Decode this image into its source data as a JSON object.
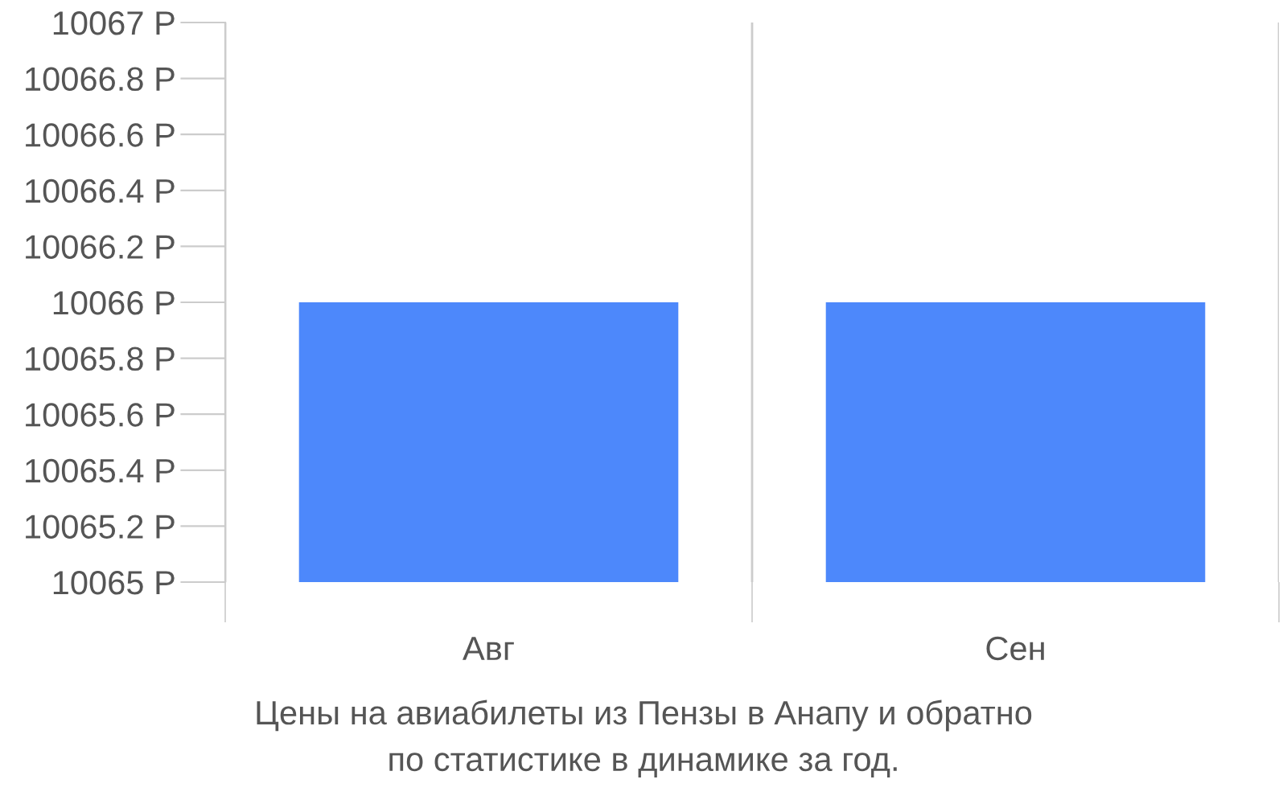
{
  "chart_data": {
    "type": "bar",
    "categories": [
      "Авг",
      "Сен"
    ],
    "values": [
      10066,
      10066
    ],
    "color": "#4d88fb",
    "ylim": [
      10065,
      10067
    ],
    "yticks": [
      {
        "value": 10065,
        "label": "10065 Р"
      },
      {
        "value": 10065.2,
        "label": "10065.2 Р"
      },
      {
        "value": 10065.4,
        "label": "10065.4 Р"
      },
      {
        "value": 10065.6,
        "label": "10065.6 Р"
      },
      {
        "value": 10065.8,
        "label": "10065.8 Р"
      },
      {
        "value": 10066,
        "label": "10066 Р"
      },
      {
        "value": 10066.2,
        "label": "10066.2 Р"
      },
      {
        "value": 10066.4,
        "label": "10066.4 Р"
      },
      {
        "value": 10066.6,
        "label": "10066.6 Р"
      },
      {
        "value": 10066.8,
        "label": "10066.8 Р"
      },
      {
        "value": 10067,
        "label": "10067 Р"
      }
    ],
    "grid": "x",
    "annotations": [
      "Цены на авиабилеты из Пензы в Анапу и обратно",
      "по статистике в динамике за год."
    ]
  }
}
